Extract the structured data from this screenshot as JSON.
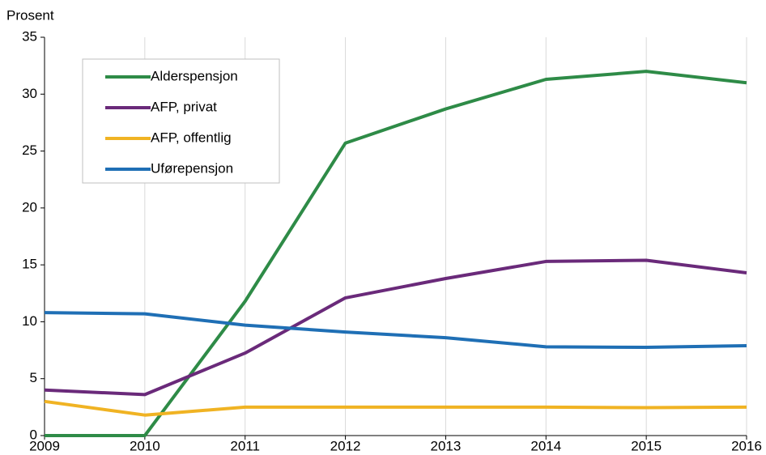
{
  "chart_data": {
    "type": "line",
    "y_label": "Prosent",
    "x": [
      2009,
      2010,
      2011,
      2012,
      2013,
      2014,
      2015,
      2016
    ],
    "series": [
      {
        "name": "Alderspensjon",
        "color": "#2e8b47",
        "values": [
          0,
          0,
          11.8,
          25.7,
          28.7,
          31.3,
          32.0,
          31.0
        ]
      },
      {
        "name": "AFP, privat",
        "color": "#6a2a7a",
        "values": [
          4.0,
          3.6,
          7.25,
          12.1,
          13.8,
          15.3,
          15.4,
          14.3
        ]
      },
      {
        "name": "AFP, offentlig",
        "color": "#f0b323",
        "values": [
          3.0,
          1.8,
          2.5,
          2.5,
          2.5,
          2.5,
          2.45,
          2.5
        ]
      },
      {
        "name": "Uførepensjon",
        "color": "#1f6fb5",
        "values": [
          10.8,
          10.7,
          9.7,
          9.1,
          8.6,
          7.8,
          7.75,
          7.9
        ]
      }
    ],
    "xlim": [
      2009,
      2016
    ],
    "xticks": [
      2009,
      2010,
      2011,
      2012,
      2013,
      2014,
      2015,
      2016
    ],
    "ylim": [
      0,
      35
    ],
    "yticks": [
      0,
      5,
      10,
      15,
      20,
      25,
      30,
      35
    ],
    "grid": true,
    "legend": "upper left"
  }
}
